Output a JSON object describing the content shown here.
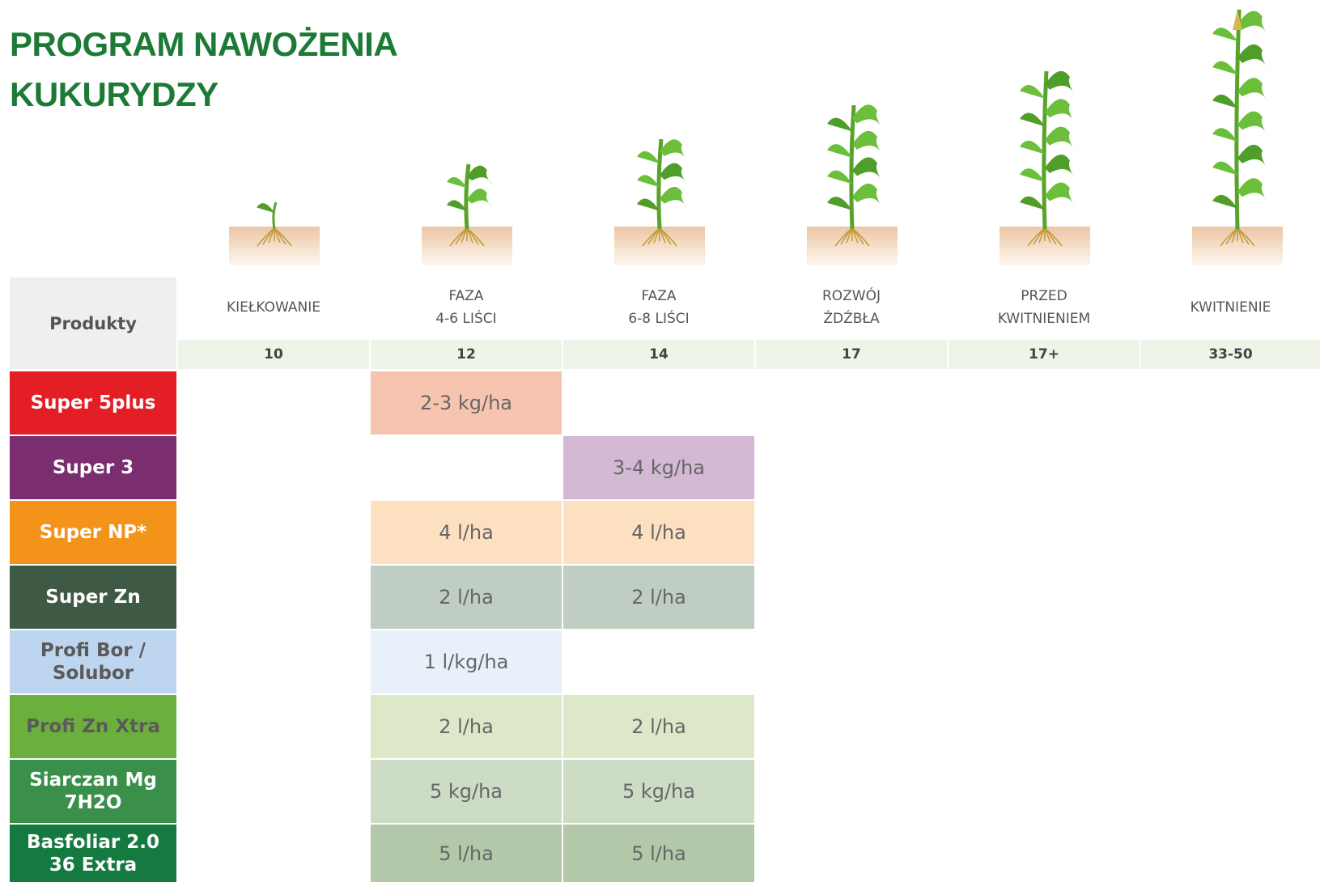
{
  "title": [
    "PROGRAM NAWOŻENIA",
    "KUKURYDZY"
  ],
  "header": {
    "products_label": "Produkty",
    "stages": [
      {
        "label": [
          "KIEŁKOWANIE"
        ],
        "leaves": "10"
      },
      {
        "label": [
          "FAZA",
          "4-6 LIŚCI"
        ],
        "leaves": "12"
      },
      {
        "label": [
          "FAZA",
          "6-8 LIŚCI"
        ],
        "leaves": "14"
      },
      {
        "label": [
          "ROZWÓJ",
          "ŹDŹBŁA"
        ],
        "leaves": "17"
      },
      {
        "label": [
          "PRZED",
          "KWITNIENIEM"
        ],
        "leaves": "17+"
      },
      {
        "label": [
          "KWITNIENIE"
        ],
        "leaves": "33-50"
      }
    ]
  },
  "rows": [
    {
      "name": [
        "Super 5plus"
      ],
      "color": "#e31e24",
      "text_color": "#ffffff",
      "cell_color": "#f7c4b0",
      "cells": [
        null,
        "2-3 kg/ha",
        null,
        null,
        null,
        null
      ]
    },
    {
      "name": [
        "Super 3"
      ],
      "color": "#7a2e6f",
      "text_color": "#ffffff",
      "cell_color": "#d3b9d3",
      "cells": [
        null,
        null,
        "3-4 kg/ha",
        null,
        null,
        null
      ]
    },
    {
      "name": [
        "Super NP*"
      ],
      "color": "#f3931a",
      "text_color": "#ffffff",
      "cell_color": "#fde0bf",
      "cells": [
        null,
        "4 l/ha",
        "4 l/ha",
        null,
        null,
        null
      ]
    },
    {
      "name": [
        "Super Zn"
      ],
      "color": "#3e5a45",
      "text_color": "#ffffff",
      "cell_color": "#c0cdc2",
      "cells": [
        null,
        "2 l/ha",
        "2 l/ha",
        null,
        null,
        null
      ]
    },
    {
      "name": [
        "Profi Bor /",
        "Solubor"
      ],
      "color": "#bed5ef",
      "text_color": "#5a5a5a",
      "cell_color": "#e8f0fa",
      "cells": [
        null,
        "1 l/kg/ha",
        null,
        null,
        null,
        null
      ]
    },
    {
      "name": [
        "Profi Zn Xtra"
      ],
      "color": "#6bb03d",
      "text_color": "#5a5a5a",
      "cell_color": "#dce8c7",
      "cells": [
        null,
        "2 l/ha",
        "2 l/ha",
        null,
        null,
        null
      ]
    },
    {
      "name": [
        "Siarczan Mg",
        "7H2O"
      ],
      "color": "#3a8f4a",
      "text_color": "#ffffff",
      "cell_color": "#cddcc5",
      "cells": [
        null,
        "5 kg/ha",
        "5 kg/ha",
        null,
        null,
        null
      ]
    },
    {
      "name": [
        "Basfoliar 2.0",
        "36 Extra"
      ],
      "color": "#147a3f",
      "text_color": "#ffffff",
      "cell_color": "#b3c7a9",
      "cells": [
        null,
        "5 l/ha",
        "5 l/ha",
        null,
        null,
        null
      ]
    }
  ]
}
